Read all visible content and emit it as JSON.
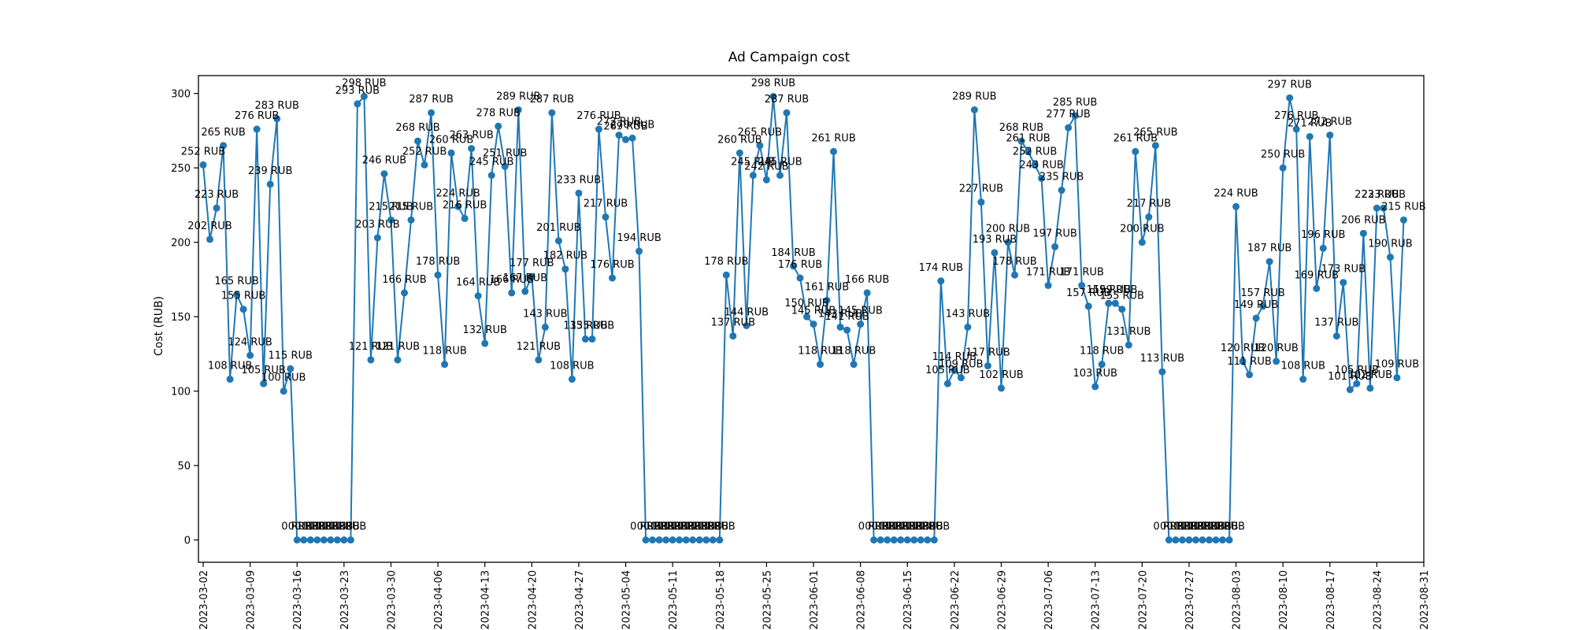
{
  "chart_data": {
    "type": "line",
    "title": "Ad Campaign cost",
    "xlabel": "",
    "ylabel": "Cost (RUB)",
    "label_suffix": " RUB",
    "ylim": [
      -15,
      312
    ],
    "yticks": [
      0,
      50,
      100,
      150,
      200,
      250,
      300
    ],
    "x_start": "2023-03-02",
    "x_end": "2023-08-31",
    "xticks": [
      "2023-03-02",
      "2023-03-09",
      "2023-03-16",
      "2023-03-23",
      "2023-03-30",
      "2023-04-06",
      "2023-04-13",
      "2023-04-20",
      "2023-04-27",
      "2023-05-04",
      "2023-05-11",
      "2023-05-18",
      "2023-05-25",
      "2023-06-01",
      "2023-06-08",
      "2023-06-15",
      "2023-06-22",
      "2023-06-29",
      "2023-07-06",
      "2023-07-13",
      "2023-07-20",
      "2023-07-27",
      "2023-08-03",
      "2023-08-10",
      "2023-08-17",
      "2023-08-24",
      "2023-08-31"
    ],
    "grid": false,
    "series": [
      {
        "values": [
          252,
          202,
          223,
          265,
          108,
          165,
          155,
          124,
          276,
          105,
          239,
          283,
          100,
          115,
          0,
          0,
          0,
          0,
          0,
          0,
          0,
          0,
          0,
          293,
          298,
          121,
          203,
          246,
          215,
          121,
          166,
          215,
          268,
          252,
          287,
          178,
          118,
          260,
          224,
          216,
          263,
          164,
          132,
          245,
          278,
          251,
          166,
          289,
          167,
          177,
          121,
          143,
          287,
          201,
          182,
          108,
          233,
          135,
          135,
          276,
          217,
          176,
          272,
          269,
          270,
          194,
          0,
          0,
          0,
          0,
          0,
          0,
          0,
          0,
          0,
          0,
          0,
          0,
          178,
          137,
          260,
          144,
          245,
          265,
          242,
          298,
          245,
          287,
          184,
          176,
          150,
          145,
          118,
          161,
          261,
          143,
          141,
          118,
          145,
          166,
          0,
          0,
          0,
          0,
          0,
          0,
          0,
          0,
          0,
          0,
          174,
          105,
          114,
          109,
          143,
          289,
          227,
          117,
          193,
          102,
          200,
          178,
          268,
          261,
          252,
          243,
          171,
          197,
          235,
          277,
          285,
          171,
          157,
          103,
          118,
          159,
          159,
          155,
          131,
          261,
          200,
          217,
          265,
          113,
          0,
          0,
          0,
          0,
          0,
          0,
          0,
          0,
          0,
          0,
          224,
          120,
          111,
          149,
          157,
          187,
          120,
          250,
          297,
          276,
          108,
          271,
          169,
          196,
          272,
          137,
          173,
          101,
          105,
          206,
          102,
          223,
          223,
          190,
          109,
          215
        ]
      }
    ]
  }
}
